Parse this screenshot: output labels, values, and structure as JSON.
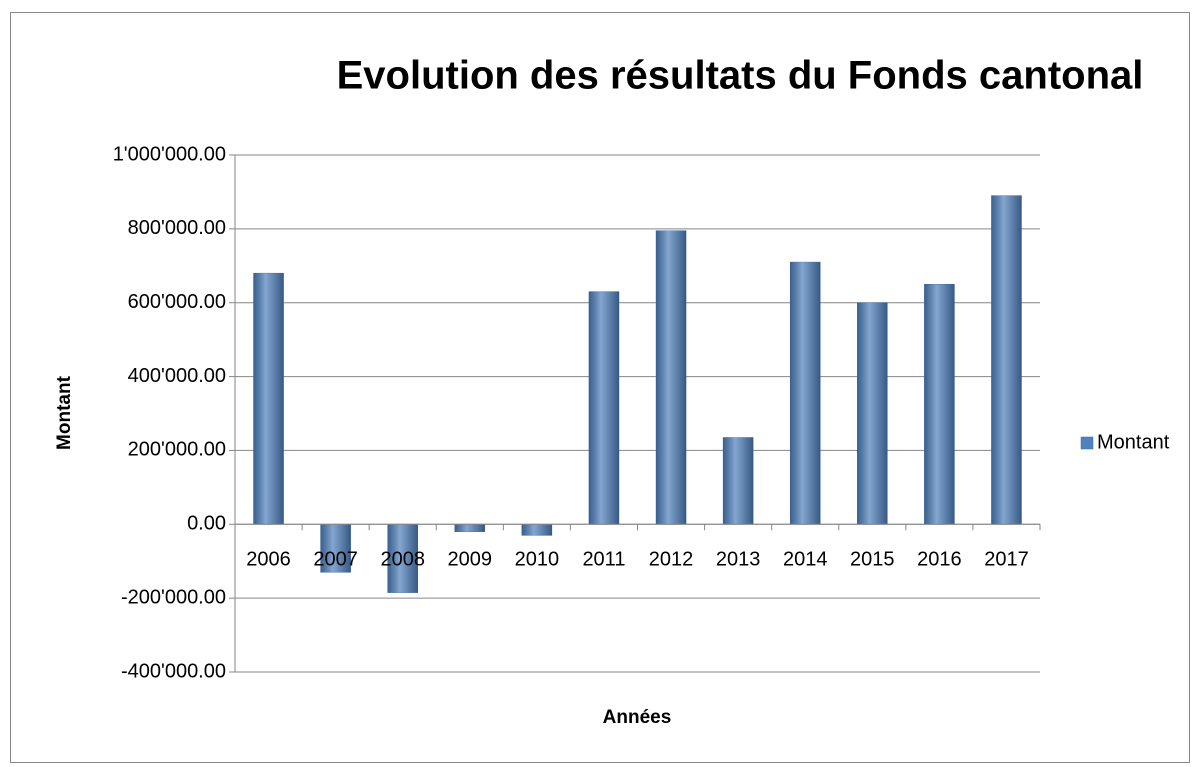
{
  "chart_data": {
    "type": "bar",
    "title": "Evolution des résultats du Fonds cantonal",
    "x_label": "Années",
    "y_label": "Montant",
    "categories": [
      "2006",
      "2007",
      "2008",
      "2009",
      "2010",
      "2011",
      "2012",
      "2013",
      "2014",
      "2015",
      "2016",
      "2017"
    ],
    "series": [
      {
        "name": "Montant",
        "color": "#4f81bd",
        "values": [
          680000,
          -130000,
          -185000,
          -20000,
          -30000,
          630000,
          795000,
          235000,
          710000,
          600000,
          650000,
          890000
        ]
      }
    ],
    "ylim": [
      -400000,
      1000000
    ],
    "yticks": [
      {
        "value": -400000,
        "label": "-400'000.00"
      },
      {
        "value": -200000,
        "label": "-200'000.00"
      },
      {
        "value": 0,
        "label": "0.00"
      },
      {
        "value": 200000,
        "label": "200'000.00"
      },
      {
        "value": 400000,
        "label": "400'000.00"
      },
      {
        "value": 600000,
        "label": "600'000.00"
      },
      {
        "value": 800000,
        "label": "800'000.00"
      },
      {
        "value": 1000000,
        "label": "1'000'000.00"
      }
    ],
    "grid": true,
    "legend": "right"
  }
}
